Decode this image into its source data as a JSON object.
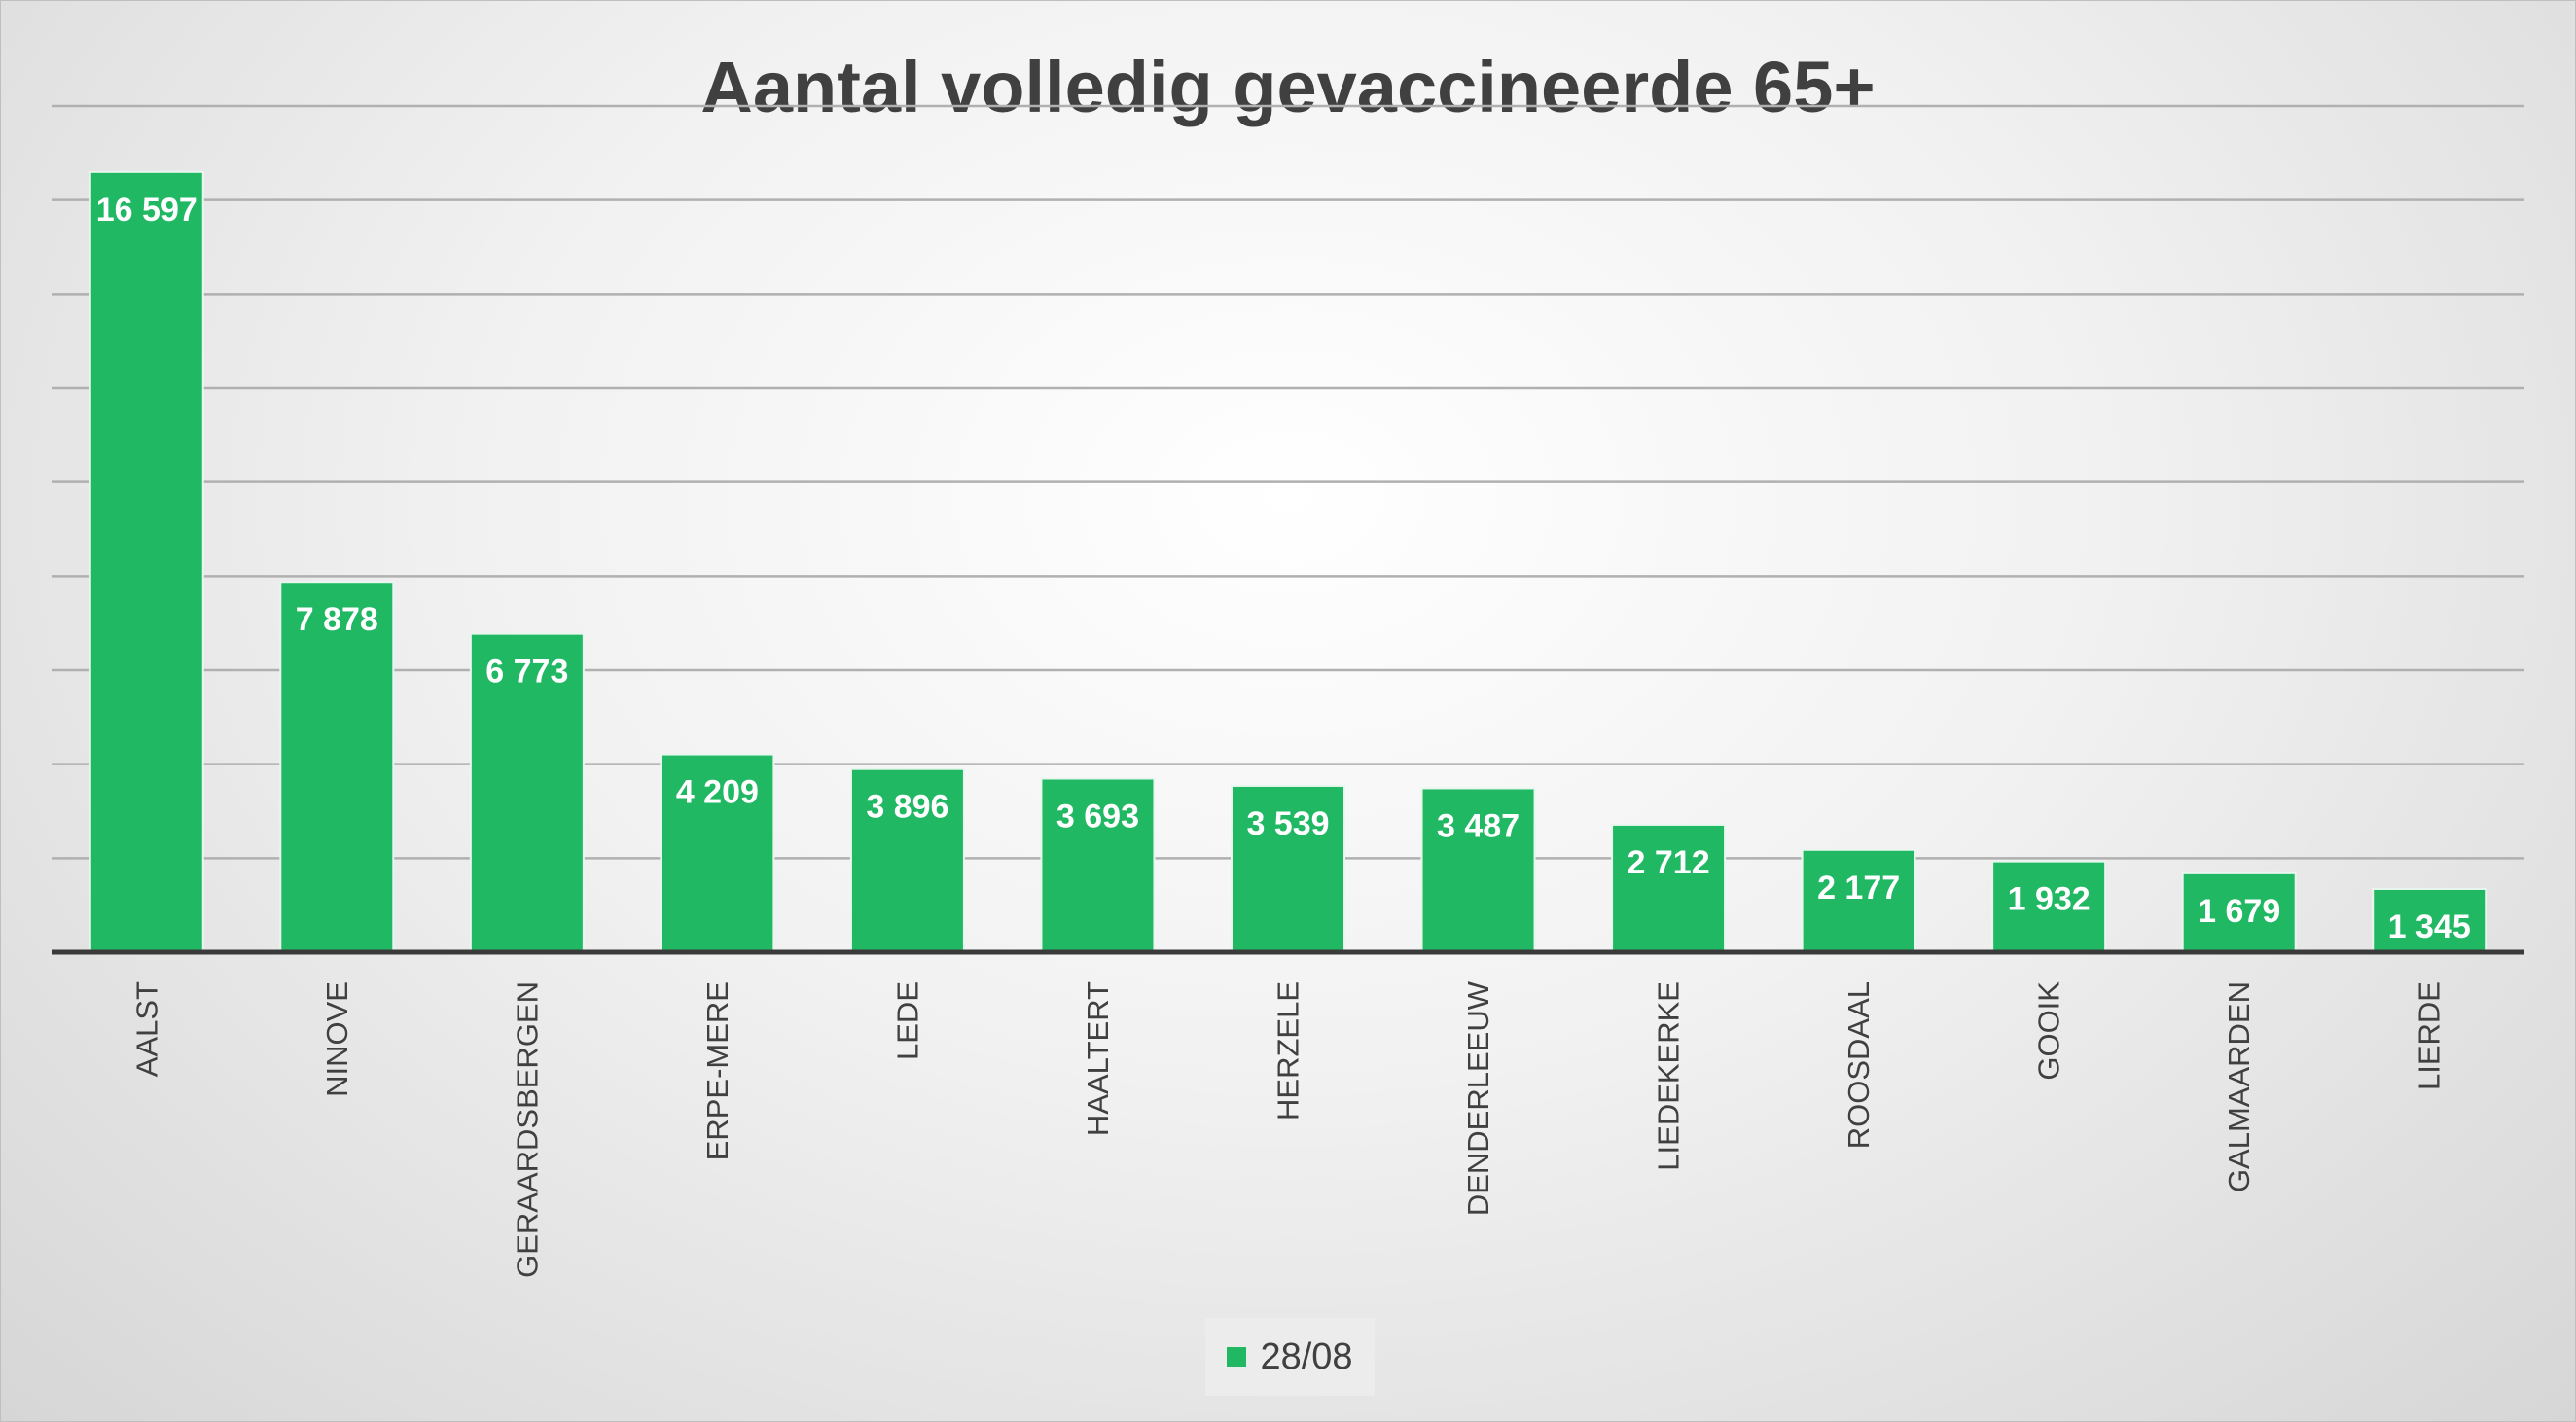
{
  "colors": {
    "bar": "#21b864",
    "gridline": "#b0b0b0",
    "axis": "#3a3a3a",
    "text": "#404040"
  },
  "chart_data": {
    "type": "bar",
    "title": "Aantal volledig gevaccineerde 65+",
    "xlabel": "",
    "ylabel": "",
    "ylim": [
      0,
      18000
    ],
    "grid": true,
    "gridline_step": 2000,
    "y_tick_labels_shown": false,
    "legend_position": "bottom",
    "categories": [
      "AALST",
      "NINOVE",
      "GERAARDSBERGEN",
      "ERPE-MERE",
      "LEDE",
      "HAALTERT",
      "HERZELE",
      "DENDERLEEUW",
      "LIEDEKERKE",
      "ROOSDAAL",
      "GOOIK",
      "GALMAARDEN",
      "LIERDE"
    ],
    "series": [
      {
        "name": "28/08",
        "color": "#21b864",
        "values": [
          16597,
          7878,
          6773,
          4209,
          3896,
          3693,
          3539,
          3487,
          2712,
          2177,
          1932,
          1679,
          1345
        ],
        "labels": [
          "16 597",
          "7 878",
          "6 773",
          "4 209",
          "3 896",
          "3 693",
          "3 539",
          "3 487",
          "2 712",
          "2 177",
          "1 932",
          "1 679",
          "1 345"
        ]
      }
    ]
  }
}
